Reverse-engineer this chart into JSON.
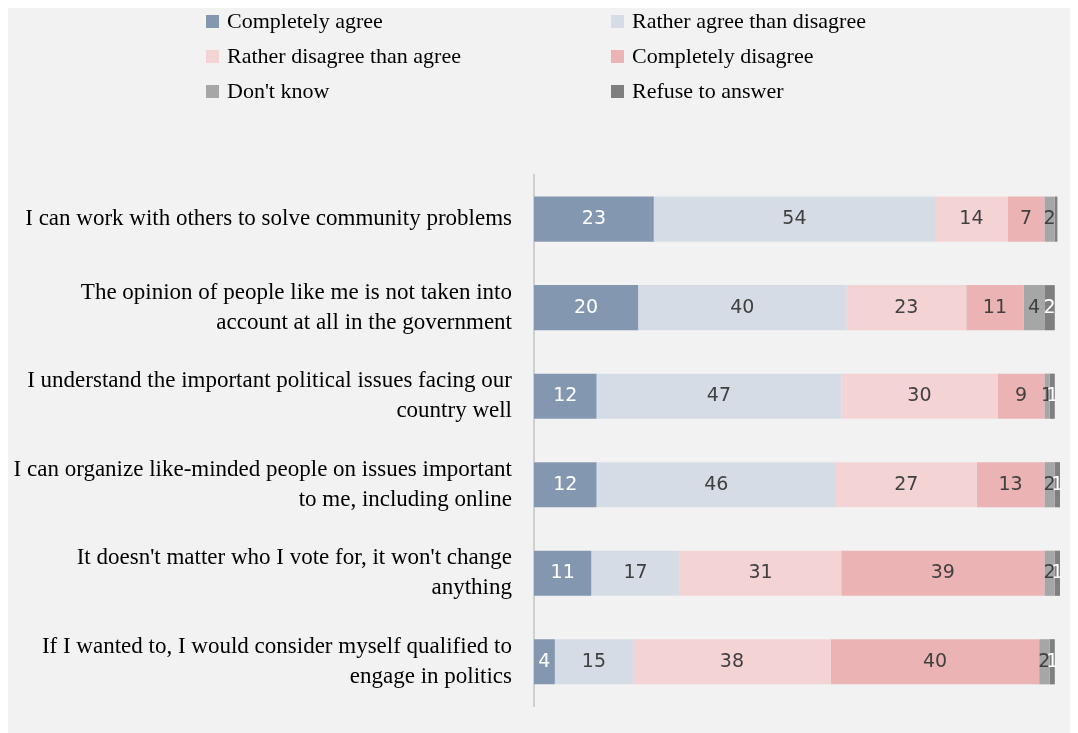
{
  "chart_data": {
    "type": "bar",
    "orientation": "horizontal",
    "stacked": true,
    "legend": "top",
    "grid": false,
    "tick_labels": "y",
    "xlim": [
      0,
      101
    ],
    "categories": [
      "I can work with others to solve community problems",
      "The opinion of people like me is not taken into account at all in the government",
      "I understand the important political issues facing our country well",
      "I can organize like-minded people on issues important to me, including online",
      "It doesn't matter who I vote for, it won't change anything",
      "If I wanted to, I would consider myself qualified to engage in politics"
    ],
    "series": [
      {
        "name": "Completely agree",
        "color": "#8497b0",
        "values": [
          23,
          20,
          12,
          12,
          11,
          4
        ],
        "value_labels": [
          "23",
          "20",
          "12",
          "12",
          "11",
          "4"
        ]
      },
      {
        "name": "Rather agree than disagree",
        "color": "#d6dce5",
        "values": [
          54,
          40,
          47,
          46,
          17,
          15
        ],
        "value_labels": [
          "54",
          "40",
          "47",
          "46",
          "17",
          "15"
        ]
      },
      {
        "name": "Rather disagree than agree",
        "color": "#f4d3d5",
        "values": [
          14,
          23,
          30,
          27,
          31,
          38
        ],
        "value_labels": [
          "14",
          "23",
          "30",
          "27",
          "31",
          "38"
        ]
      },
      {
        "name": "Completely disagree",
        "color": "#ebb3b3",
        "values": [
          7,
          11,
          9,
          13,
          39,
          40
        ],
        "value_labels": [
          "7",
          "11",
          "9",
          "13",
          "39",
          "40"
        ]
      },
      {
        "name": "Don't know",
        "color": "#a6a6a6",
        "values": [
          2,
          4,
          1,
          2,
          2,
          2
        ],
        "value_labels": [
          "2",
          "4",
          "1",
          "2",
          "2",
          "2"
        ]
      },
      {
        "name": "Refuse to answer",
        "color": "#7f7f7f",
        "values": [
          0.5,
          2,
          1,
          1,
          1,
          1
        ],
        "value_labels": [
          null,
          "2",
          "1",
          "1",
          "1",
          "1"
        ]
      }
    ]
  }
}
